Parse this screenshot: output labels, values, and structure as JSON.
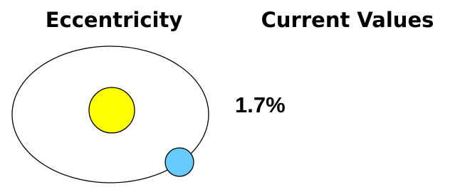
{
  "header": {
    "left_title": "Eccentricity",
    "right_title": "Current Values"
  },
  "current_value": "1.7%"
}
